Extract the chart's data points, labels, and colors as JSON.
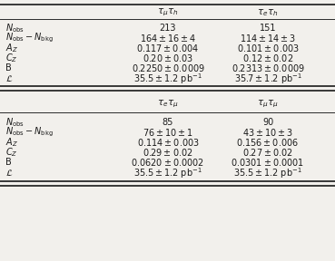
{
  "col_headers_top": [
    "τ_{μ}τ_{h}",
    "τ_{e}τ_{h}"
  ],
  "col_headers_bot": [
    "τ_{e}τ_{μ}",
    "τ_{μ}τ_{μ}"
  ],
  "row_labels": [
    "N_obs",
    "N_obs - N_bkg",
    "A_Z",
    "C_Z",
    "B",
    "L"
  ],
  "data_top": [
    [
      "213",
      "151"
    ],
    [
      "164 ± 16 ± 4",
      "114 ± 14 ± 3"
    ],
    [
      "0.117 ± 0.004",
      "0.101 ± 0.003"
    ],
    [
      "0.20 ± 0.03",
      "0.12 ± 0.02"
    ],
    [
      "0.2250 ± 0.0009",
      "0.2313 ± 0.0009"
    ],
    [
      "35.5 ± 1.2 pb⁻¹",
      "35.7 ± 1.2 pb⁻¹"
    ]
  ],
  "data_bot": [
    [
      "85",
      "90"
    ],
    [
      "76 ± 10 ± 1",
      "43 ± 10 ± 3"
    ],
    [
      "0.114 ± 0.003",
      "0.156 ± 0.006"
    ],
    [
      "0.29 ± 0.02",
      "0.27 ± 0.02"
    ],
    [
      "0.0620 ± 0.0002",
      "0.0301 ± 0.0001"
    ],
    [
      "35.5 ± 1.2 pb⁻¹",
      "35.5 ± 1.2 pb⁻¹"
    ]
  ],
  "bg_color": "#f2f0ec",
  "text_color": "#1a1a1a",
  "fontsize": 7.0,
  "header_fontsize": 7.5
}
